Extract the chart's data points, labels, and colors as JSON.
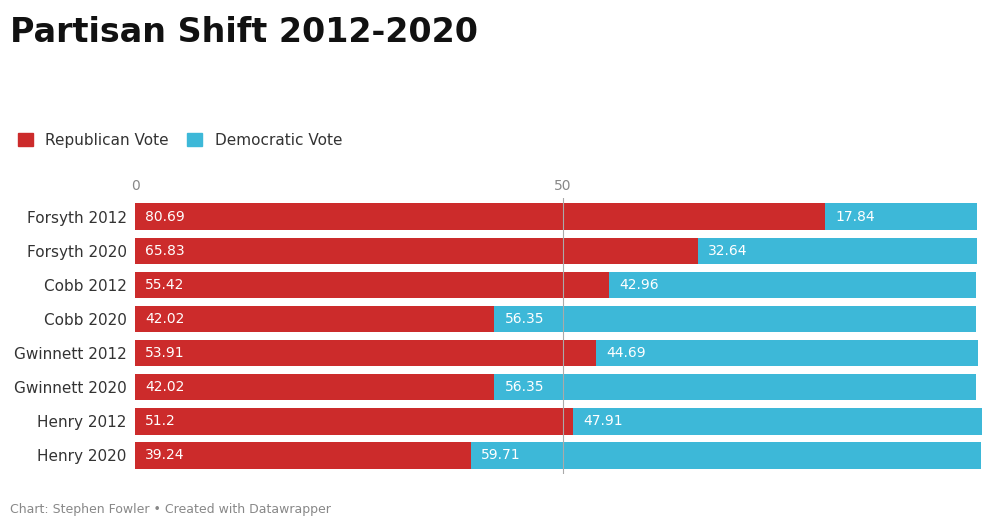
{
  "title": "Partisan Shift 2012-2020",
  "categories": [
    "Forsyth 2012",
    "Forsyth 2020",
    "Cobb 2012",
    "Cobb 2020",
    "Gwinnett 2012",
    "Gwinnett 2020",
    "Henry 2012",
    "Henry 2020"
  ],
  "republican_values": [
    80.69,
    65.83,
    55.42,
    42.02,
    53.91,
    42.02,
    51.2,
    39.24
  ],
  "democratic_values": [
    17.84,
    32.64,
    42.96,
    56.35,
    44.69,
    56.35,
    47.91,
    59.71
  ],
  "republican_color": "#cc2b2b",
  "democratic_color": "#3db8d8",
  "background_color": "#ffffff",
  "title_fontsize": 24,
  "label_fontsize": 11,
  "bar_label_fontsize": 10,
  "legend_fontsize": 11,
  "footnote": "Chart: Stephen Fowler • Created with Datawrapper",
  "xlim": [
    0,
    100
  ],
  "ref_label_0": "0",
  "ref_label_50": "50"
}
